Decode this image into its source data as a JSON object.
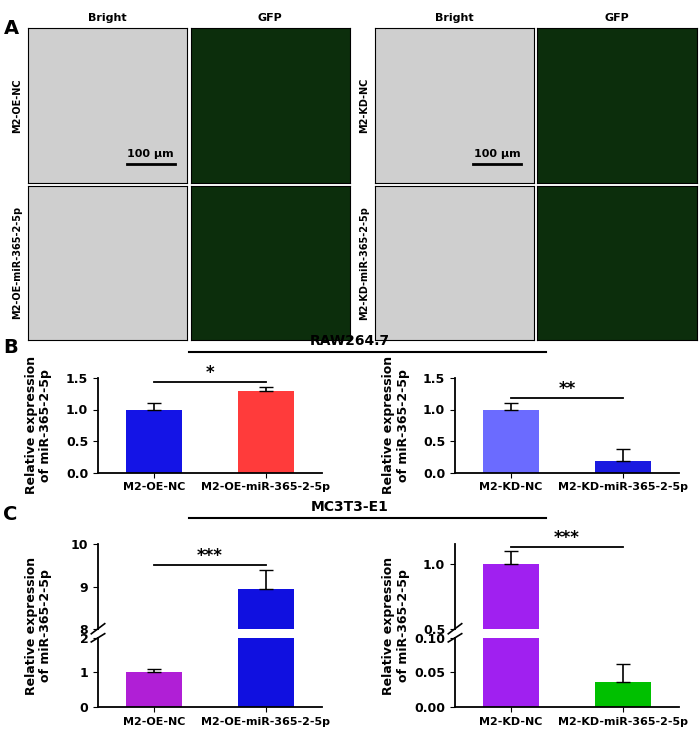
{
  "image_panel": {
    "label": "A",
    "columns": [
      "Bright",
      "GFP"
    ],
    "groups": [
      {
        "rows": [
          "M2-OE-NC",
          "M2-OE-miR-365-2-5p"
        ]
      },
      {
        "rows": [
          "M2-KD-NC",
          "M2-KD-miR-365-2-5p"
        ]
      }
    ],
    "scale_bar": "100 μm"
  },
  "panels": [
    {
      "label": "B",
      "title": "RAW264.7"
    },
    {
      "label": "C",
      "title": "MC3T3-E1"
    }
  ],
  "chart_data": [
    {
      "type": "bar",
      "categories": [
        "M2-OE-NC",
        "M2-OE-miR-365-2-5p"
      ],
      "values": [
        1.0,
        1.29
      ],
      "errors": [
        0.1,
        0.07
      ],
      "colors": [
        "#1414e6",
        "#ff3b3b"
      ],
      "ylabel": "Relative expression\nof miR-365-2-5p",
      "ylim": [
        0,
        1.5
      ],
      "yticks": [
        {
          "value": 0,
          "label": "0.0"
        },
        0.5,
        {
          "value": 1,
          "label": "1.0"
        },
        1.5
      ],
      "significance": "*"
    },
    {
      "type": "bar",
      "categories": [
        "M2-KD-NC",
        "M2-KD-miR-365-2-5p"
      ],
      "values": [
        1.0,
        0.18
      ],
      "errors": [
        0.1,
        0.2
      ],
      "colors": [
        "#6b6bff",
        "#1a1ae0"
      ],
      "ylabel": "Relative expression\nof miR-365-2-5p",
      "ylim": [
        0,
        1.5
      ],
      "yticks": [
        {
          "value": 0,
          "label": "0.0"
        },
        0.5,
        {
          "value": 1,
          "label": "1.0"
        },
        1.5
      ],
      "significance": "**"
    },
    {
      "type": "bar",
      "categories": [
        "M2-OE-NC",
        "M2-OE-miR-365-2-5p"
      ],
      "values": [
        1.0,
        8.95
      ],
      "errors": [
        0.1,
        0.45
      ],
      "colors": [
        "#b01fd6",
        "#1010e0"
      ],
      "ylabel": "Relative expression\nof miR-365-2-5p",
      "segments": [
        {
          "ylim": [
            0,
            2
          ],
          "yticks": [
            0,
            1,
            2
          ]
        },
        {
          "ylim": [
            8,
            10
          ],
          "yticks": [
            8,
            9,
            10
          ]
        }
      ],
      "significance": "***"
    },
    {
      "type": "bar",
      "categories": [
        "M2-KD-NC",
        "M2-KD-miR-365-2-5p"
      ],
      "values": [
        1.0,
        0.036
      ],
      "errors": [
        0.1,
        0.026
      ],
      "colors": [
        "#a020f0",
        "#00c000"
      ],
      "ylabel": "Relative expression\nof miR-365-2-5p",
      "segments": [
        {
          "ylim": [
            0,
            0.1
          ],
          "yticks": [
            {
              "value": 0,
              "label": "0.00"
            },
            0.05,
            {
              "value": 0.1,
              "label": "0.10"
            }
          ]
        },
        {
          "ylim": [
            0.5,
            1.15
          ],
          "yticks": [
            0.5,
            {
              "value": 1,
              "label": "1.0"
            }
          ]
        }
      ],
      "significance": "***"
    }
  ]
}
